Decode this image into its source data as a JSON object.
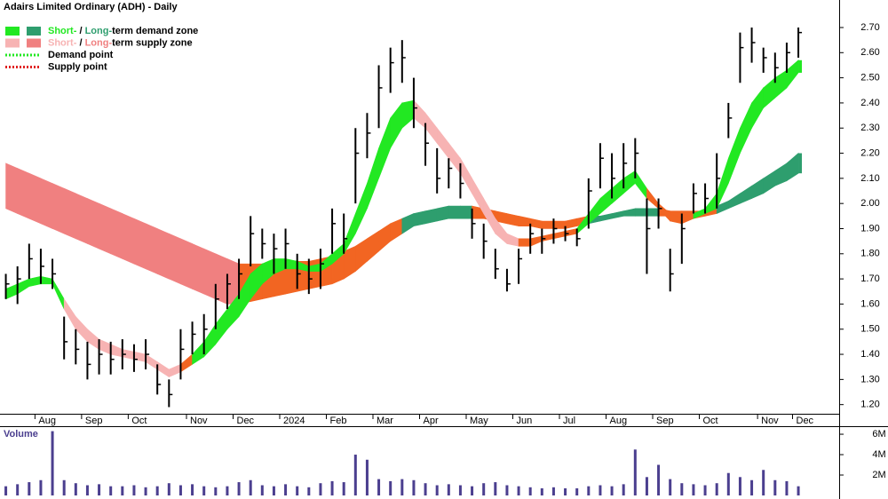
{
  "chart_data": {
    "type": "ohlc",
    "title": "Adairs Limited Ordinary (ADH) - Daily",
    "categories": [
      null,
      null,
      null,
      "Aug",
      null,
      null,
      null,
      "Sep",
      null,
      null,
      null,
      "Oct",
      null,
      null,
      null,
      null,
      "Nov",
      null,
      null,
      null,
      "Dec",
      null,
      null,
      null,
      "2024",
      null,
      null,
      null,
      "Feb",
      null,
      null,
      null,
      "Mar",
      null,
      null,
      null,
      "Apr",
      null,
      null,
      null,
      "May",
      null,
      null,
      null,
      "Jun",
      null,
      null,
      null,
      "Jul",
      null,
      null,
      null,
      "Aug",
      null,
      null,
      null,
      "Sep",
      null,
      null,
      null,
      "Oct",
      null,
      null,
      null,
      null,
      "Nov",
      null,
      null,
      "Dec"
    ],
    "color": "#000000",
    "high": [
      1.72,
      1.75,
      1.84,
      1.82,
      1.78,
      1.55,
      1.5,
      1.45,
      1.46,
      1.45,
      1.46,
      1.44,
      1.46,
      1.36,
      1.3,
      1.5,
      1.53,
      1.56,
      1.68,
      1.72,
      1.78,
      1.95,
      1.9,
      1.88,
      1.9,
      1.8,
      1.78,
      1.82,
      1.98,
      1.96,
      2.3,
      2.36,
      2.55,
      2.62,
      2.65,
      2.5,
      2.32,
      2.22,
      2.18,
      2.16,
      1.98,
      1.92,
      1.82,
      1.74,
      1.82,
      1.92,
      1.9,
      1.94,
      1.91,
      1.9,
      2.1,
      2.24,
      2.2,
      2.24,
      2.26,
      2.02,
      2.02,
      1.82,
      1.96,
      2.08,
      2.08,
      2.2,
      2.4,
      2.68,
      2.7,
      2.62,
      2.6,
      2.64,
      2.7
    ],
    "low": [
      1.62,
      1.6,
      1.7,
      1.68,
      1.66,
      1.38,
      1.36,
      1.3,
      1.32,
      1.32,
      1.34,
      1.33,
      1.34,
      1.24,
      1.19,
      1.3,
      1.4,
      1.4,
      1.5,
      1.58,
      1.62,
      1.75,
      1.78,
      1.72,
      1.74,
      1.66,
      1.64,
      1.66,
      1.8,
      1.8,
      2.0,
      2.18,
      2.3,
      2.44,
      2.48,
      2.3,
      2.15,
      2.04,
      2.06,
      2.02,
      1.86,
      1.78,
      1.7,
      1.65,
      1.68,
      1.8,
      1.8,
      1.84,
      1.85,
      1.83,
      1.9,
      2.06,
      2.02,
      2.06,
      2.1,
      1.72,
      1.9,
      1.65,
      1.76,
      1.96,
      1.96,
      1.98,
      2.26,
      2.48,
      2.56,
      2.52,
      2.48,
      2.52,
      2.58
    ],
    "close": [
      1.68,
      1.7,
      1.78,
      1.75,
      1.72,
      1.45,
      1.42,
      1.36,
      1.4,
      1.38,
      1.4,
      1.38,
      1.4,
      1.28,
      1.24,
      1.42,
      1.48,
      1.5,
      1.62,
      1.68,
      1.72,
      1.88,
      1.84,
      1.82,
      1.84,
      1.72,
      1.7,
      1.76,
      1.92,
      1.86,
      2.2,
      2.28,
      2.46,
      2.56,
      2.58,
      2.38,
      2.24,
      2.1,
      2.14,
      2.08,
      1.92,
      1.85,
      1.74,
      1.68,
      1.78,
      1.88,
      1.86,
      1.9,
      1.88,
      1.86,
      2.05,
      2.18,
      2.1,
      2.16,
      2.2,
      1.9,
      1.98,
      1.72,
      1.9,
      2.04,
      2.02,
      2.1,
      2.34,
      2.62,
      2.64,
      2.58,
      2.54,
      2.6,
      2.68
    ],
    "short_band": {
      "upper": [
        1.66,
        1.68,
        1.7,
        1.71,
        1.7,
        1.62,
        1.55,
        1.5,
        1.46,
        1.44,
        1.42,
        1.41,
        1.4,
        1.37,
        1.34,
        1.36,
        1.4,
        1.45,
        1.52,
        1.58,
        1.64,
        1.72,
        1.76,
        1.78,
        1.78,
        1.77,
        1.75,
        1.76,
        1.8,
        1.84,
        1.96,
        2.08,
        2.22,
        2.34,
        2.4,
        2.41,
        2.36,
        2.3,
        2.24,
        2.18,
        2.1,
        2.02,
        1.94,
        1.88,
        1.86,
        1.86,
        1.87,
        1.88,
        1.89,
        1.9,
        1.96,
        2.02,
        2.06,
        2.1,
        2.13,
        2.06,
        2.0,
        1.96,
        1.94,
        1.96,
        1.98,
        2.04,
        2.18,
        2.3,
        2.4,
        2.46,
        2.5,
        2.53,
        2.57
      ],
      "lower": [
        1.62,
        1.64,
        1.67,
        1.68,
        1.68,
        1.58,
        1.5,
        1.45,
        1.42,
        1.4,
        1.39,
        1.38,
        1.37,
        1.34,
        1.31,
        1.33,
        1.36,
        1.39,
        1.44,
        1.5,
        1.55,
        1.62,
        1.68,
        1.72,
        1.74,
        1.74,
        1.73,
        1.73,
        1.76,
        1.8,
        1.88,
        1.98,
        2.1,
        2.22,
        2.3,
        2.34,
        2.3,
        2.24,
        2.18,
        2.12,
        2.04,
        1.96,
        1.88,
        1.84,
        1.83,
        1.83,
        1.85,
        1.86,
        1.87,
        1.88,
        1.92,
        1.96,
        2.0,
        2.04,
        2.08,
        2.02,
        1.98,
        1.93,
        1.92,
        1.94,
        1.96,
        1.98,
        2.08,
        2.2,
        2.3,
        2.38,
        2.42,
        2.46,
        2.52
      ],
      "colors": [
        "#22e822",
        "#22e822",
        "#22e822",
        "#22e822",
        "#22e822",
        "#f7b3b3",
        "#f7b3b3",
        "#f7b3b3",
        "#f7b3b3",
        "#f7b3b3",
        "#f7b3b3",
        "#f7b3b3",
        "#f7b3b3",
        "#f7b3b3",
        "#f7b3b3",
        "#f26522",
        "#22e822",
        "#22e822",
        "#22e822",
        "#22e822",
        "#22e822",
        "#22e822",
        "#22e822",
        "#22e822",
        "#22e822",
        "#22e822",
        "#22e822",
        "#22e822",
        "#22e822",
        "#22e822",
        "#22e822",
        "#22e822",
        "#22e822",
        "#22e822",
        "#22e822",
        "#f7b3b3",
        "#f7b3b3",
        "#f7b3b3",
        "#f7b3b3",
        "#f7b3b3",
        "#f7b3b3",
        "#f7b3b3",
        "#f7b3b3",
        "#f7b3b3",
        "#f26522",
        "#f26522",
        "#f26522",
        "#f26522",
        "#f26522",
        "#22e822",
        "#22e822",
        "#22e822",
        "#22e822",
        "#22e822",
        "#22e822",
        "#f26522",
        "#f26522",
        "#f26522",
        "#f26522",
        "#22e822",
        "#22e822",
        "#22e822",
        "#22e822",
        "#22e822",
        "#22e822",
        "#22e822",
        "#22e822",
        "#22e822",
        "#22e822"
      ]
    },
    "long_band": {
      "upper": [
        2.16,
        2.14,
        2.12,
        2.1,
        2.08,
        2.06,
        2.04,
        2.02,
        2.0,
        1.98,
        1.96,
        1.94,
        1.92,
        1.9,
        1.88,
        1.86,
        1.84,
        1.82,
        1.8,
        1.78,
        1.76,
        1.76,
        1.76,
        1.76,
        1.77,
        1.77,
        1.77,
        1.78,
        1.79,
        1.81,
        1.83,
        1.86,
        1.89,
        1.92,
        1.94,
        1.96,
        1.97,
        1.98,
        1.99,
        1.99,
        1.99,
        1.98,
        1.97,
        1.96,
        1.95,
        1.94,
        1.93,
        1.93,
        1.93,
        1.94,
        1.95,
        1.95,
        1.96,
        1.97,
        1.98,
        1.98,
        1.98,
        1.97,
        1.97,
        1.97,
        1.97,
        1.99,
        2.01,
        2.04,
        2.07,
        2.1,
        2.13,
        2.16,
        2.2
      ],
      "lower": [
        1.98,
        1.96,
        1.94,
        1.92,
        1.9,
        1.88,
        1.86,
        1.84,
        1.82,
        1.8,
        1.78,
        1.76,
        1.74,
        1.72,
        1.7,
        1.68,
        1.66,
        1.64,
        1.62,
        1.6,
        1.6,
        1.61,
        1.62,
        1.63,
        1.64,
        1.65,
        1.66,
        1.67,
        1.68,
        1.7,
        1.73,
        1.77,
        1.81,
        1.85,
        1.88,
        1.91,
        1.92,
        1.93,
        1.94,
        1.94,
        1.94,
        1.94,
        1.93,
        1.92,
        1.91,
        1.91,
        1.9,
        1.9,
        1.9,
        1.91,
        1.92,
        1.93,
        1.94,
        1.95,
        1.95,
        1.95,
        1.95,
        1.95,
        1.94,
        1.94,
        1.95,
        1.96,
        1.98,
        2.0,
        2.02,
        2.04,
        2.07,
        2.09,
        2.12
      ],
      "colors": [
        "#f08080",
        "#f08080",
        "#f08080",
        "#f08080",
        "#f08080",
        "#f08080",
        "#f08080",
        "#f08080",
        "#f08080",
        "#f08080",
        "#f08080",
        "#f08080",
        "#f08080",
        "#f08080",
        "#f08080",
        "#f08080",
        "#f08080",
        "#f08080",
        "#f08080",
        "#f08080",
        "#f26522",
        "#f26522",
        "#f26522",
        "#f26522",
        "#f26522",
        "#f26522",
        "#f26522",
        "#f26522",
        "#f26522",
        "#f26522",
        "#f26522",
        "#f26522",
        "#f26522",
        "#f26522",
        "#2e9e6e",
        "#2e9e6e",
        "#2e9e6e",
        "#2e9e6e",
        "#2e9e6e",
        "#2e9e6e",
        "#f26522",
        "#f26522",
        "#f26522",
        "#f26522",
        "#f26522",
        "#f26522",
        "#f26522",
        "#f26522",
        "#f26522",
        "#f26522",
        "#2e9e6e",
        "#2e9e6e",
        "#2e9e6e",
        "#2e9e6e",
        "#2e9e6e",
        "#2e9e6e",
        "#f26522",
        "#f26522",
        "#f26522",
        "#f26522",
        "#f26522",
        "#2e9e6e",
        "#2e9e6e",
        "#2e9e6e",
        "#2e9e6e",
        "#2e9e6e",
        "#2e9e6e",
        "#2e9e6e",
        "#2e9e6e"
      ]
    },
    "ylim": [
      1.16,
      2.76
    ],
    "yticks": [
      {
        "value": 1.2,
        "label": "1.20"
      },
      {
        "value": 1.3,
        "label": "1.30"
      },
      {
        "value": 1.4,
        "label": "1.40"
      },
      {
        "value": 1.5,
        "label": "1.50"
      },
      {
        "value": 1.6,
        "label": "1.60"
      },
      {
        "value": 1.7,
        "label": "1.70"
      },
      {
        "value": 1.8,
        "label": "1.80"
      },
      {
        "value": 1.9,
        "label": "1.90"
      },
      {
        "value": 2.0,
        "label": "2.00"
      },
      {
        "value": 2.1,
        "label": "2.10"
      },
      {
        "value": 2.2,
        "label": "2.20"
      },
      {
        "value": 2.3,
        "label": "2.30"
      },
      {
        "value": 2.4,
        "label": "2.40"
      },
      {
        "value": 2.5,
        "label": "2.50"
      },
      {
        "value": 2.6,
        "label": "2.60"
      },
      {
        "value": 2.7,
        "label": "2.70"
      }
    ],
    "legend": [
      {
        "parts": [
          "Short-",
          " / ",
          "Long-",
          "term demand zone"
        ],
        "colors": [
          "#22e822",
          "#000000",
          "#2e9e6e",
          "#000000"
        ],
        "swatches": [
          "#22e822",
          "#2e9e6e"
        ]
      },
      {
        "parts": [
          "Short-",
          " / ",
          "Long-",
          "term supply zone"
        ],
        "colors": [
          "#f7b3b3",
          "#000000",
          "#f08080",
          "#000000"
        ],
        "swatches": [
          "#f7b3b3",
          "#f08080"
        ]
      }
    ],
    "points": [
      {
        "label": "Demand point",
        "color": "#22e822"
      },
      {
        "label": "Supply point",
        "color": "#e02020"
      }
    ],
    "volume": {
      "label": "Volume",
      "color": "#4b3f8f",
      "values": [
        900000,
        1100000,
        1300000,
        1500000,
        6300000,
        1500000,
        1200000,
        1000000,
        1100000,
        900000,
        900000,
        1000000,
        800000,
        900000,
        1200000,
        1000000,
        1100000,
        900000,
        800000,
        900000,
        1300000,
        1500000,
        1000000,
        900000,
        1100000,
        900000,
        800000,
        1200000,
        1400000,
        1300000,
        4000000,
        3500000,
        1600000,
        1400000,
        1600000,
        1500000,
        1200000,
        1000000,
        1100000,
        1000000,
        900000,
        1200000,
        1300000,
        1000000,
        900000,
        800000,
        700000,
        800000,
        700000,
        700000,
        900000,
        1000000,
        900000,
        1100000,
        4500000,
        1800000,
        3000000,
        1600000,
        1200000,
        1100000,
        1000000,
        1200000,
        2200000,
        1800000,
        1500000,
        2500000,
        1500000,
        1400000,
        900000
      ],
      "ylim": [
        0,
        6700000
      ],
      "yticks": [
        {
          "value": 2000000,
          "label": "2M"
        },
        {
          "value": 4000000,
          "label": "4M"
        },
        {
          "value": 6000000,
          "label": "6M"
        }
      ]
    }
  }
}
